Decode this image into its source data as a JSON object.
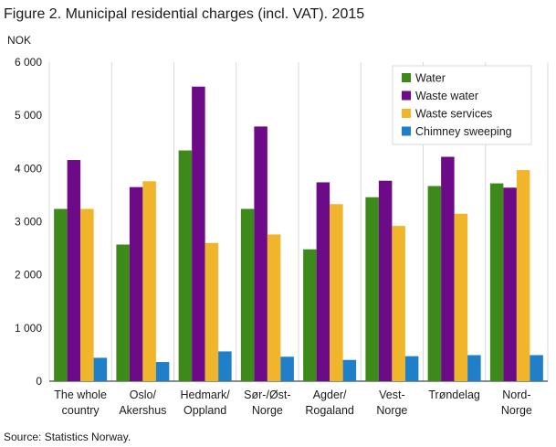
{
  "title": "Figure 2. Municipal residential charges (incl. VAT). 2015",
  "source": "Source: Statistics Norway.",
  "chart_data": {
    "type": "bar",
    "ylabel": "NOK",
    "ylim": [
      0,
      6000
    ],
    "yticks": [
      0,
      1000,
      2000,
      3000,
      4000,
      5000,
      6000
    ],
    "ytick_labels": [
      "0",
      "1 000",
      "2 000",
      "3 000",
      "4 000",
      "5 000",
      "6 000"
    ],
    "grid": "vertical category separators",
    "legend_position": "top-right",
    "categories": [
      [
        "The whole",
        "country"
      ],
      [
        "Oslo/",
        "Akershus"
      ],
      [
        "Hedmark/",
        "Oppland"
      ],
      [
        "Sør-/Øst-",
        "Norge"
      ],
      [
        "Agder/",
        "Rogaland"
      ],
      [
        "Vest-",
        "Norge"
      ],
      [
        "Trøndelag"
      ],
      [
        "Nord-",
        "Norge"
      ]
    ],
    "series": [
      {
        "name": "Water",
        "color": "#3d8a1a",
        "values": [
          3240,
          2570,
          4340,
          3240,
          2480,
          3460,
          3670,
          3720
        ]
      },
      {
        "name": "Waste water",
        "color": "#6d0a87",
        "values": [
          4160,
          3650,
          5540,
          4790,
          3740,
          3770,
          4220,
          3640
        ]
      },
      {
        "name": "Waste services",
        "color": "#f0b52a",
        "values": [
          3240,
          3760,
          2600,
          2760,
          3330,
          2920,
          3150,
          3970
        ]
      },
      {
        "name": "Chimney sweeping",
        "color": "#1f7fc9",
        "values": [
          440,
          360,
          560,
          460,
          400,
          470,
          490,
          490
        ]
      }
    ]
  }
}
